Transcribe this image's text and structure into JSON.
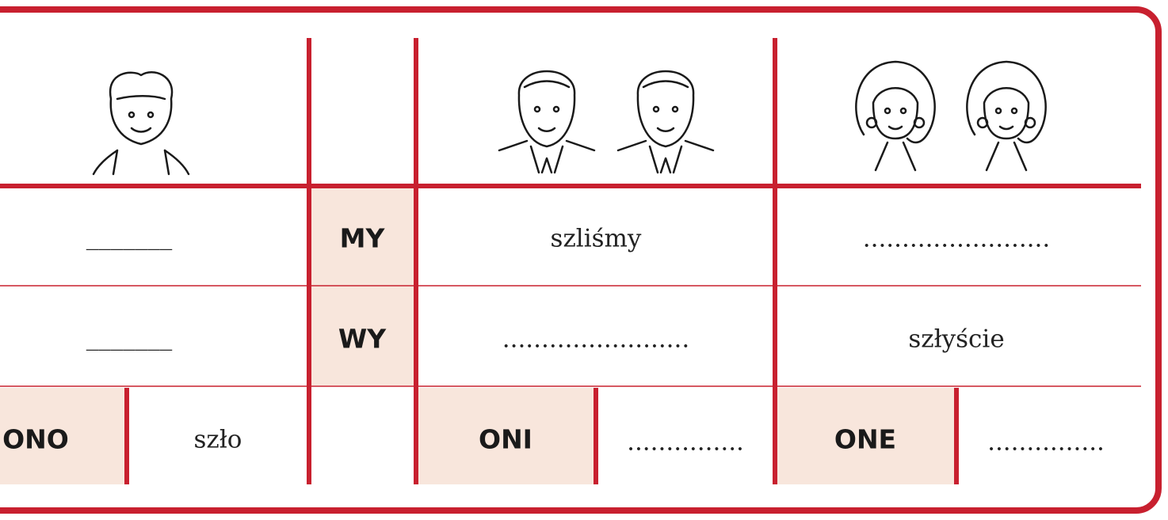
{
  "table": {
    "rows": [
      [
        "_______",
        "MY",
        "szliśmy",
        "........................"
      ],
      [
        "_______",
        "WY",
        "........................",
        "szłyście"
      ],
      [
        "ONO",
        "szło",
        "ONI",
        "...............",
        "ONE",
        "..............."
      ]
    ]
  }
}
